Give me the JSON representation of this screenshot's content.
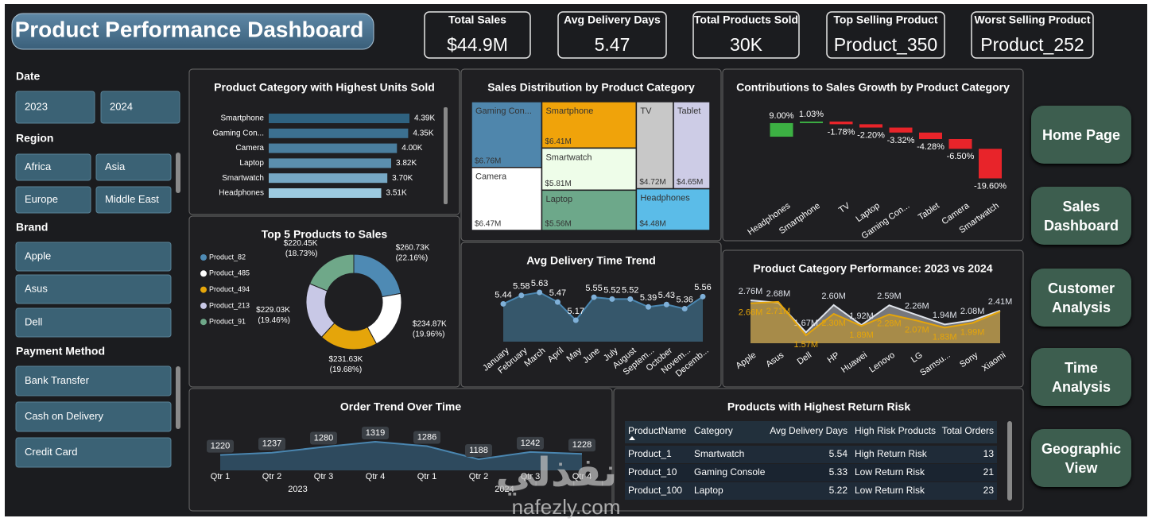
{
  "header": {
    "title": "Product Performance Dashboard"
  },
  "kpis": [
    {
      "label": "Total Sales",
      "value": "$44.9M"
    },
    {
      "label": "Avg Delivery Days",
      "value": "5.47"
    },
    {
      "label": "Total Products Sold",
      "value": "30K"
    },
    {
      "label": "Top Selling Product",
      "value": "Product_350"
    },
    {
      "label": "Worst Selling Product",
      "value": "Product_252"
    }
  ],
  "filters": [
    {
      "label": "Date",
      "options": [
        "2023",
        "2024"
      ]
    },
    {
      "label": "Region",
      "options": [
        "Africa",
        "Asia",
        "Europe",
        "Middle East"
      ]
    },
    {
      "label": "Brand",
      "options": [
        "Apple",
        "Asus",
        "Dell"
      ]
    },
    {
      "label": "Payment Method",
      "options": [
        "Bank Transfer",
        "Cash on Delivery",
        "Credit Card"
      ]
    }
  ],
  "nav": [
    "Home Page",
    "Sales Dashboard",
    "Customer Analysis",
    "Time Analysis",
    "Geographic View"
  ],
  "chart_data": [
    {
      "type": "bar",
      "title": "Product Category with Highest Units Sold",
      "categories": [
        "Smartphone",
        "Gaming Con...",
        "Camera",
        "Laptop",
        "Smartwatch",
        "Headphones"
      ],
      "values": [
        4390,
        4350,
        4000,
        3820,
        3700,
        3510
      ],
      "value_labels": [
        "4.39K",
        "4.35K",
        "4.00K",
        "3.82K",
        "3.70K",
        "3.51K"
      ],
      "colors": [
        "#2f6280",
        "#3c7090",
        "#4a7e9e",
        "#5b8fae",
        "#77a8c4",
        "#9ccae0"
      ]
    },
    {
      "type": "treemap",
      "title": "Sales Distribution by Product Category",
      "categories": [
        "Gaming Con...",
        "Smartphone",
        "TV",
        "Tablet",
        "Camera",
        "Smartwatch",
        "Laptop",
        "Headphones"
      ],
      "values": [
        6760000,
        6410000,
        4720000,
        4650000,
        6470000,
        5810000,
        5560000,
        4480000
      ],
      "value_labels": [
        "$6.76M",
        "$6.41M",
        "$4.72M",
        "$4.65M",
        "$6.47M",
        "$5.81M",
        "$5.56M",
        "$4.48M"
      ],
      "colors": [
        "#4f86ac",
        "#f0a30a",
        "#c8c8c8",
        "#cdcce6",
        "#ffffff",
        "#eefde9",
        "#6da88a",
        "#5bbce8"
      ]
    },
    {
      "type": "waterfall",
      "title": "Contributions to Sales Growth by Product Category",
      "categories": [
        "Headphones",
        "Smartphone",
        "TV",
        "Laptop",
        "Gaming Con...",
        "Tablet",
        "Camera",
        "Smartwatch"
      ],
      "values": [
        9,
        1.03,
        -1.78,
        -2.2,
        -3.32,
        -4.28,
        -6.5,
        -19.6
      ],
      "value_labels": [
        "9.00%",
        "1.03%",
        "-1.78%",
        "-2.20%",
        "-3.32%",
        "-4.28%",
        "-6.50%",
        "-19.60%"
      ],
      "increase_color": "#3cb043",
      "decrease_color": "#e8242a"
    },
    {
      "type": "donut",
      "title": "Top 5 Products to Sales",
      "categories": [
        "Product_82",
        "Product_485",
        "Product_494",
        "Product_213",
        "Product_91"
      ],
      "values": [
        260730,
        234870,
        231630,
        229030,
        220450
      ],
      "value_labels": [
        "$260.73K",
        "$234.87K",
        "$231.63K",
        "$229.03K",
        "$220.45K"
      ],
      "percents": [
        22.16,
        19.96,
        19.68,
        19.46,
        18.73
      ],
      "percent_labels": [
        "(22.16%)",
        "(19.96%)",
        "(19.68%)",
        "(19.46%)",
        "(18.73%)"
      ],
      "colors": [
        "#4e8ab4",
        "#ffffff",
        "#e5a50a",
        "#c8c8e6",
        "#6fa889"
      ]
    },
    {
      "type": "line",
      "title": "Avg Delivery Time Trend",
      "categories": [
        "January",
        "February",
        "March",
        "April",
        "May",
        "June",
        "July",
        "August",
        "Septem...",
        "October",
        "Novem...",
        "Decemb..."
      ],
      "values": [
        5.44,
        5.58,
        5.63,
        5.47,
        5.17,
        5.55,
        5.52,
        5.52,
        5.39,
        5.43,
        5.36,
        5.56
      ],
      "color": "#4a86b0"
    },
    {
      "type": "area",
      "title": "Product Category Performance: 2023 vs 2024",
      "categories": [
        "Apple",
        "Asus",
        "Dell",
        "HP",
        "Huawei",
        "Lenovo",
        "LG",
        "Samsu...",
        "Sony",
        "Xiaomi"
      ],
      "series": [
        {
          "color": "#dfe3ea",
          "values": [
            2760000,
            2680000,
            1670000,
            2600000,
            1920000,
            2590000,
            2260000,
            1940000,
            2080000,
            2410000
          ],
          "value_labels": [
            "2.76M",
            "2.68M",
            "1.67M",
            "2.60M",
            "1.92M",
            "2.59M",
            "2.26M",
            "1.94M",
            "2.08M",
            "2.41M"
          ]
        },
        {
          "color": "#e5a50a",
          "values": [
            2660000,
            2710000,
            1570000,
            2300000,
            1890000,
            2280000,
            2070000,
            1830000,
            1990000,
            2380000
          ],
          "value_labels": [
            "2.66M",
            "2.71M",
            "1.57M",
            "2.30M",
            "1.89M",
            "2.28M",
            "2.07M",
            "1.83M",
            "1.99M",
            null
          ]
        }
      ]
    },
    {
      "type": "area",
      "title": "Order Trend Over Time",
      "categories": [
        "Qtr 1",
        "Qtr 2",
        "Qtr 3",
        "Qtr 4",
        "Qtr 1",
        "Qtr 2",
        "Qtr 3",
        "Qtr 4"
      ],
      "groups": [
        "2023",
        "2024"
      ],
      "values": [
        1220,
        1237,
        1280,
        1319,
        1286,
        1188,
        1242,
        1228
      ],
      "color": "#4a86b0"
    }
  ],
  "table": {
    "title": "Products with Highest Return Risk",
    "columns": [
      "ProductName",
      "Category",
      "Avg Delivery Days",
      "High Risk Products",
      "Total Orders"
    ],
    "rows": [
      [
        "Product_1",
        "Smartwatch",
        5.54,
        "High Return Risk",
        13
      ],
      [
        "Product_10",
        "Gaming Console",
        5.33,
        "Low Return Risk",
        21
      ],
      [
        "Product_100",
        "Laptop",
        5.22,
        "Low Return Risk",
        23
      ]
    ]
  },
  "watermark": {
    "logo": "نفذلي",
    "url": "nafezly.com"
  }
}
